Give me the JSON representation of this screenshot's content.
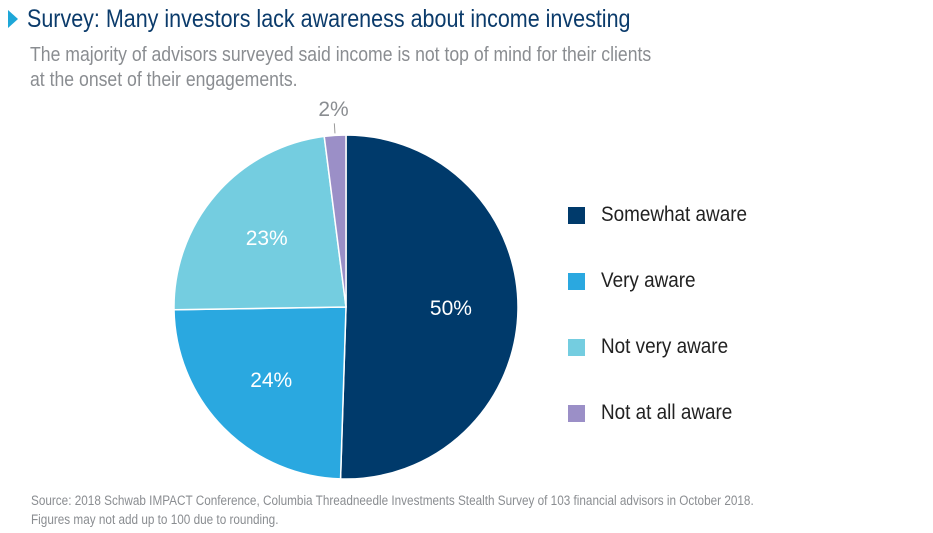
{
  "header": {
    "title": "Survey: Many investors lack awareness about income investing",
    "subtitle_line1": "The majority of advisors surveyed said income is not top of mind for their clients",
    "subtitle_line2": "at the onset of their engagements."
  },
  "footer": {
    "source_line1": "Source: 2018 Schwab IMPACT Conference, Columbia Threadneedle Investments Stealth Survey of 103 financial advisors in October 2018.",
    "source_line2": "Figures may not add up to 100 due to rounding."
  },
  "chart_data": {
    "type": "pie",
    "title": "",
    "categories": [
      "Somewhat aware",
      "Very aware",
      "Not very aware",
      "Not at all aware"
    ],
    "values": [
      50,
      24,
      23,
      2
    ],
    "labels": [
      "50%",
      "24%",
      "23%",
      "2%"
    ],
    "colors": [
      "#003a6b",
      "#2aa8e0",
      "#74cde0",
      "#9b8fc7"
    ],
    "start_angle": "12 o'clock",
    "direction": "clockwise",
    "legend_position": "right"
  },
  "legend": {
    "items": [
      {
        "label": "Somewhat aware",
        "color": "#003a6b"
      },
      {
        "label": "Very aware",
        "color": "#2aa8e0"
      },
      {
        "label": "Not very aware",
        "color": "#74cde0"
      },
      {
        "label": "Not at all aware",
        "color": "#9b8fc7"
      }
    ]
  },
  "colors": {
    "title": "#0b3b6b",
    "accent_arrow": "#1ea7d8",
    "subtitle": "#8a8d91"
  }
}
